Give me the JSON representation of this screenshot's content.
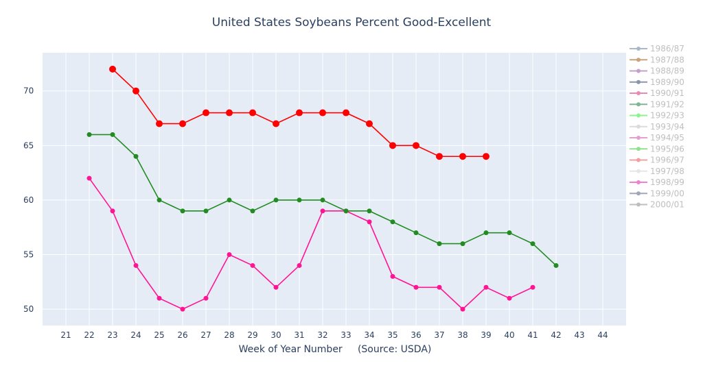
{
  "chart_data": {
    "type": "line",
    "title": "United States Soybeans Percent Good-Excellent",
    "xlabel": "Week of Year Number     (Source: USDA)",
    "ylabel": "",
    "x_range": [
      20,
      45
    ],
    "ylim": [
      48.5,
      73.5
    ],
    "x_ticks": [
      21,
      22,
      23,
      24,
      25,
      26,
      27,
      28,
      29,
      30,
      31,
      32,
      33,
      34,
      35,
      36,
      37,
      38,
      39,
      40,
      41,
      42,
      43,
      44
    ],
    "y_ticks": [
      50,
      55,
      60,
      65,
      70
    ],
    "grid": true,
    "plot_bgcolor": "#e5ecf6",
    "legend_placement": "right",
    "series": [
      {
        "color": "#ff1493",
        "marker_size": 3.5,
        "x": [
          22,
          23,
          24,
          25,
          26,
          27,
          28,
          29,
          30,
          31,
          32,
          33,
          34,
          35,
          36,
          37,
          38,
          39,
          40,
          41
        ],
        "y": [
          62,
          59,
          54,
          51,
          50,
          51,
          55,
          54,
          52,
          54,
          59,
          59,
          58,
          53,
          52,
          52,
          50,
          52,
          51,
          52
        ]
      },
      {
        "color": "#228b22",
        "marker_size": 3.5,
        "x": [
          22,
          23,
          24,
          25,
          26,
          27,
          28,
          29,
          30,
          31,
          32,
          33,
          34,
          35,
          36,
          37,
          38,
          39,
          40,
          41,
          42
        ],
        "y": [
          66,
          66,
          64,
          60,
          59,
          59,
          60,
          59,
          60,
          60,
          60,
          59,
          59,
          58,
          57,
          56,
          56,
          57,
          57,
          56,
          54
        ]
      },
      {
        "color": "#ff0000",
        "marker_size": 5,
        "x": [
          23,
          24,
          25,
          26,
          27,
          28,
          29,
          30,
          31,
          32,
          33,
          34,
          35,
          36,
          37,
          38,
          39
        ],
        "y": [
          72,
          70,
          67,
          67,
          68,
          68,
          68,
          67,
          68,
          68,
          68,
          67,
          65,
          65,
          64,
          64,
          64
        ]
      }
    ],
    "legend": [
      {
        "name": "1986/87",
        "color": "#a9b7c6"
      },
      {
        "name": "1987/88",
        "color": "#c8a27a"
      },
      {
        "name": "1988/89",
        "color": "#c3a0c8"
      },
      {
        "name": "1989/90",
        "color": "#8c96aa"
      },
      {
        "name": "1990/91",
        "color": "#e68cb4"
      },
      {
        "name": "1991/92",
        "color": "#82b496"
      },
      {
        "name": "1992/93",
        "color": "#8ff28f"
      },
      {
        "name": "1993/94",
        "color": "#dcdcdc"
      },
      {
        "name": "1994/95",
        "color": "#e0a0d0"
      },
      {
        "name": "1995/96",
        "color": "#90e090"
      },
      {
        "name": "1996/97",
        "color": "#f0a0a0"
      },
      {
        "name": "1997/98",
        "color": "#e6e6e6"
      },
      {
        "name": "1998/99",
        "color": "#f080d0"
      },
      {
        "name": "1999/00",
        "color": "#a0a8b8"
      },
      {
        "name": "2000/01",
        "color": "#bfbfbf"
      }
    ]
  }
}
